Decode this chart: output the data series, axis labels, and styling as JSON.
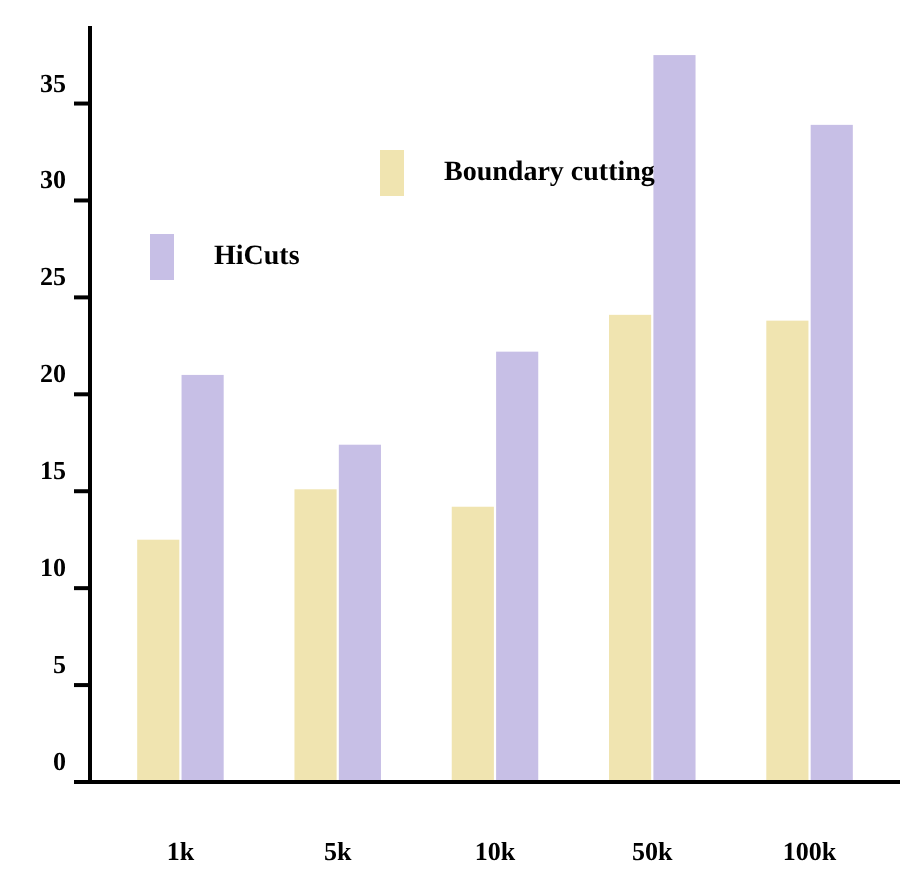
{
  "chart_data": {
    "type": "bar",
    "categories": [
      "1k",
      "5k",
      "10k",
      "50k",
      "100k"
    ],
    "series": [
      {
        "name": "Boundary cutting",
        "color": "#f0e4b0",
        "values": [
          12.5,
          15.1,
          14.2,
          24.1,
          23.8
        ]
      },
      {
        "name": "HiCuts",
        "color": "#c7bfe6",
        "values": [
          21.0,
          17.4,
          22.2,
          37.5,
          33.9
        ]
      }
    ],
    "ylim": [
      0,
      39
    ],
    "yticks": [
      0,
      5,
      10,
      15,
      20,
      25,
      30,
      35
    ],
    "grid": false,
    "legend": "top"
  }
}
